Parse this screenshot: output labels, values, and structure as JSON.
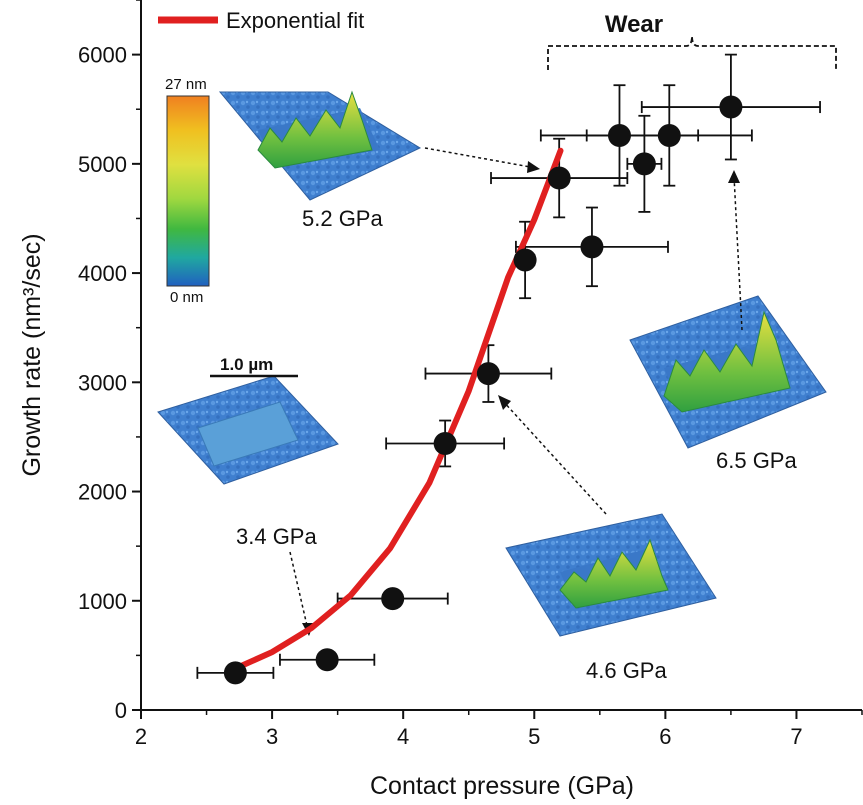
{
  "chart_data": {
    "type": "scatter",
    "xlabel": "Contact pressure (GPa)",
    "ylabel": "Growth rate (nm³/sec)",
    "xlim": [
      2,
      7.5
    ],
    "ylim": [
      0,
      6500
    ],
    "xticks": [
      "2",
      "3",
      "4",
      "5",
      "6",
      "7"
    ],
    "yticks": [
      "0",
      "1000",
      "2000",
      "3000",
      "4000",
      "5000",
      "6000"
    ],
    "grid": false,
    "legend_position": "top-left",
    "series": [
      {
        "name": "Exponential fit",
        "kind": "line",
        "color": "#e02020",
        "x": [
          2.72,
          3.0,
          3.3,
          3.6,
          3.9,
          4.2,
          4.5,
          4.8,
          5.0,
          5.2
        ],
        "y": [
          380,
          530,
          750,
          1050,
          1480,
          2080,
          2920,
          3960,
          4490,
          5120
        ]
      },
      {
        "name": "",
        "kind": "scatter",
        "color": "#111111",
        "x": [
          2.72,
          3.42,
          3.92,
          4.32,
          4.65,
          4.93,
          5.19,
          5.44,
          5.65,
          5.84,
          6.03,
          6.5
        ],
        "y": [
          340,
          460,
          1020,
          2440,
          3080,
          4120,
          4870,
          4240,
          5260,
          5000,
          5260,
          5520
        ],
        "xerr": [
          0.29,
          0.36,
          0.42,
          0.45,
          0.48,
          0.07,
          0.52,
          0.58,
          0.6,
          0.13,
          0.63,
          0.68
        ],
        "yerr": [
          60,
          60,
          60,
          210,
          260,
          350,
          360,
          360,
          460,
          440,
          460,
          480
        ]
      }
    ],
    "annotations": [
      {
        "text": "5.2 GPa"
      },
      {
        "text": "3.4 GPa"
      },
      {
        "text": "4.6 GPa"
      },
      {
        "text": "6.5 GPa"
      },
      {
        "text": "Wear"
      },
      {
        "text": "1.0 µm"
      },
      {
        "text": "27 nm"
      },
      {
        "text": "0 nm"
      }
    ]
  },
  "colorbar": {
    "max_label": "27 nm",
    "min_label": "0 nm",
    "colors": [
      "#f08020",
      "#f0c020",
      "#e0e040",
      "#a0d840",
      "#40b840",
      "#20a8a0",
      "#2060c0"
    ]
  },
  "insets": [
    {
      "id": "inset-52",
      "label": "5.2 GPa",
      "peaks": [
        0.4,
        0.7,
        0.5,
        0.9,
        0.6,
        1.0
      ]
    },
    {
      "id": "inset-34",
      "label": "3.4 GPa",
      "peaks": [
        0.05,
        0.08,
        0.06,
        0.07,
        0.05,
        0.06
      ]
    },
    {
      "id": "inset-46",
      "label": "4.6 GPa",
      "peaks": [
        0.3,
        0.6,
        0.5,
        0.7,
        0.6,
        0.9
      ]
    },
    {
      "id": "inset-65",
      "label": "6.5 GPa",
      "peaks": [
        0.5,
        0.6,
        0.7,
        0.6,
        0.8,
        1.0
      ]
    }
  ]
}
